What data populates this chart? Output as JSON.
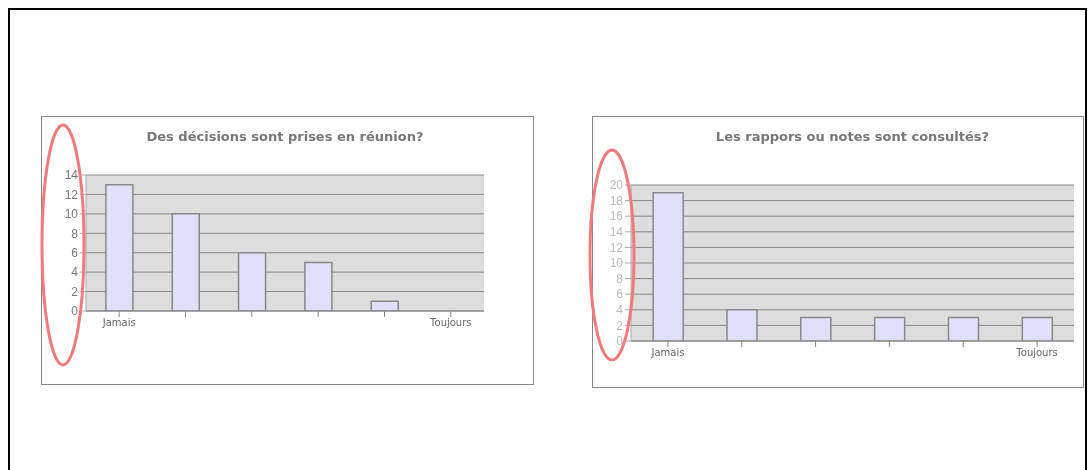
{
  "chart_data": [
    {
      "type": "bar",
      "title": "Des décisions sont prises en réunion?",
      "categories": [
        "Jamais",
        null,
        null,
        null,
        null,
        "Toujours"
      ],
      "values": [
        13,
        10,
        6,
        5,
        1,
        0
      ],
      "color": "#e0e0fc",
      "ylim": [
        0,
        14
      ],
      "yticks": [
        0,
        2,
        4,
        6,
        8,
        10,
        12,
        14
      ],
      "grid": "y"
    },
    {
      "type": "bar",
      "title": "Les rappors ou notes sont consultés?",
      "categories": [
        "Jamais",
        null,
        null,
        null,
        null,
        "Toujours"
      ],
      "values": [
        19,
        4,
        3,
        3,
        3,
        3
      ],
      "color": "#e0e0fc",
      "ylim": [
        0,
        20
      ],
      "yticks": [
        0,
        2,
        4,
        6,
        8,
        10,
        12,
        14,
        16,
        18,
        20
      ],
      "grid": "y"
    }
  ]
}
